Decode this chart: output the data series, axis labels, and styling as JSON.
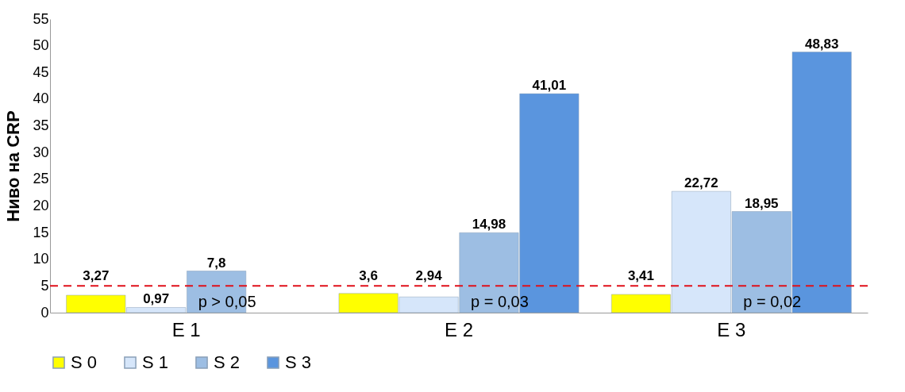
{
  "chart_data": {
    "type": "bar",
    "ylabel": "Ниво на CRP",
    "categories": [
      "E 1",
      "E 2",
      "E 3"
    ],
    "series": [
      {
        "name": "S 0",
        "color": "#ffff00",
        "values": [
          3.27,
          3.6,
          3.41
        ],
        "value_labels": [
          "3,27",
          "3,6",
          "3,41"
        ]
      },
      {
        "name": "S 1",
        "color": "#d6e6fa",
        "values": [
          0.97,
          2.94,
          22.72
        ],
        "value_labels": [
          "0,97",
          "2,94",
          "22,72"
        ]
      },
      {
        "name": "S 2",
        "color": "#9dbee3",
        "values": [
          7.8,
          14.98,
          18.95
        ],
        "value_labels": [
          "7,8",
          "14,98",
          "18,95"
        ]
      },
      {
        "name": "S 3",
        "color": "#5a95de",
        "values": [
          null,
          41.01,
          48.83
        ],
        "value_labels": [
          null,
          "41,01",
          "48,83"
        ]
      }
    ],
    "ylim": [
      0,
      55
    ],
    "yticks": [
      0,
      5,
      10,
      15,
      20,
      25,
      30,
      35,
      40,
      45,
      50,
      55
    ],
    "ref_lines": [
      {
        "axis": "y",
        "value": 5,
        "color": "#e0101a",
        "line_style": "dashed"
      }
    ],
    "annotations": [
      {
        "text": "p > 0,05",
        "x": "E 1",
        "y": 2
      },
      {
        "text": "p = 0,03",
        "x": "E 2",
        "y": 2
      },
      {
        "text": "p = 0,02",
        "x": "E 3",
        "y": 2
      }
    ],
    "legend": "bottom",
    "grid": false
  }
}
